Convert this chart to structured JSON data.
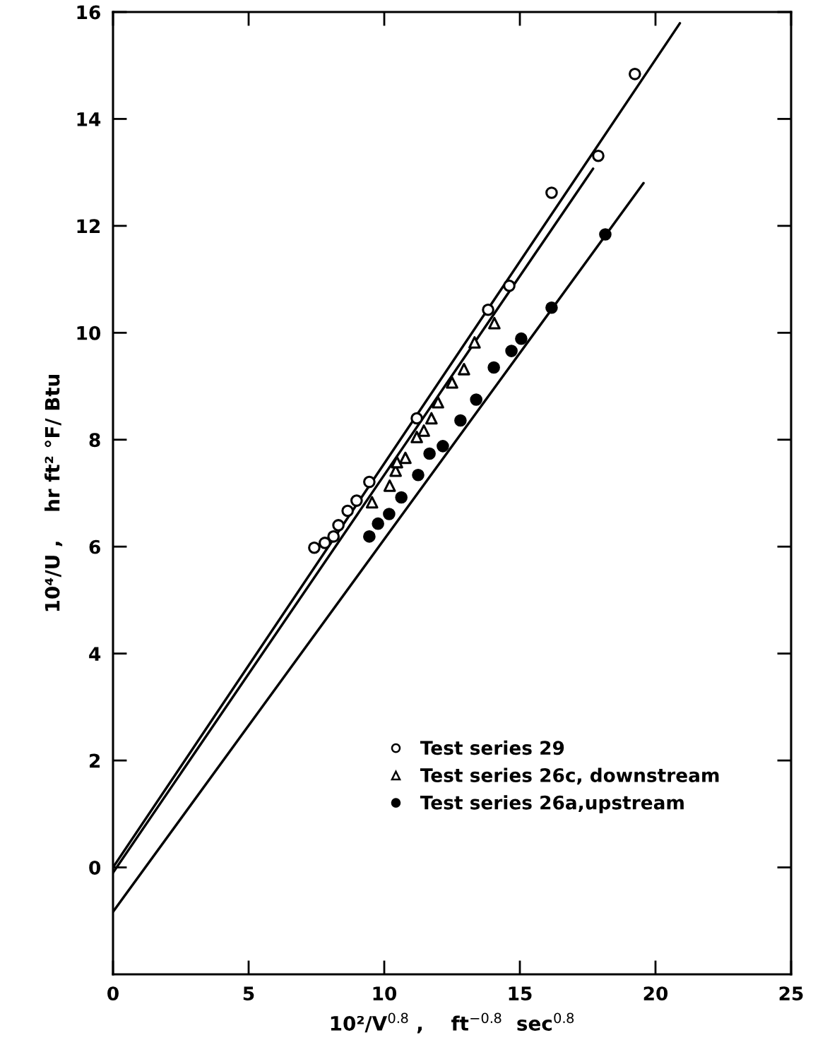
{
  "chart_data": {
    "type": "scatter",
    "xlabel": "10²/V$^{0.8}$ ,    ft$^{−0.8}$  sec$^{0.8}$",
    "ylabel": "10⁴/U ,    hr ft² °F/ Btu",
    "xlim": [
      0,
      25
    ],
    "ylim": [
      -2,
      16
    ],
    "xticks": [
      0,
      5,
      10,
      15,
      20,
      25
    ],
    "yticks": [
      0,
      2,
      4,
      6,
      8,
      10,
      12,
      14,
      16
    ],
    "grid": false,
    "legend": "lower right",
    "series": [
      {
        "name": "Test series 29",
        "marker": "circle",
        "color": "#ffffff",
        "x": [
          7.42,
          7.81,
          8.13,
          8.31,
          8.65,
          8.98,
          9.45,
          11.2,
          13.83,
          14.61,
          16.17,
          17.89,
          19.24
        ],
        "values": [
          5.98,
          6.07,
          6.19,
          6.4,
          6.67,
          6.86,
          7.21,
          8.4,
          10.43,
          10.88,
          12.62,
          13.31,
          14.84
        ]
      },
      {
        "name": "Test series 26c, downstream",
        "marker": "triangle",
        "color": "#ffffff",
        "x": [
          9.55,
          10.2,
          10.42,
          10.47,
          10.78,
          11.2,
          11.46,
          11.74,
          11.98,
          12.5,
          12.94,
          13.33,
          14.06
        ],
        "values": [
          6.83,
          7.14,
          7.42,
          7.58,
          7.66,
          8.05,
          8.17,
          8.4,
          8.7,
          9.07,
          9.32,
          9.82,
          10.18
        ]
      },
      {
        "name": "Test series 26a,upstream",
        "marker": "circle",
        "color": "#000000",
        "x": [
          9.45,
          9.77,
          10.18,
          10.63,
          11.25,
          11.67,
          12.16,
          12.81,
          13.39,
          14.04,
          14.69,
          15.05,
          16.17,
          18.15
        ],
        "values": [
          6.19,
          6.43,
          6.61,
          6.92,
          7.34,
          7.74,
          7.88,
          8.36,
          8.75,
          9.35,
          9.66,
          9.89,
          10.47,
          11.84
        ]
      },
      {
        "type": "line",
        "line_style": "solid",
        "color": "#000000",
        "x": [
          0,
          20.9
        ],
        "values": [
          0,
          15.79
        ]
      },
      {
        "type": "line",
        "line_style": "solid",
        "color": "#000000",
        "x": [
          0,
          17.7
        ],
        "values": [
          -0.1,
          13.07
        ]
      },
      {
        "type": "line",
        "line_style": "solid",
        "color": "#000000",
        "x": [
          0,
          19.56
        ],
        "values": [
          -0.83,
          12.8
        ]
      }
    ]
  }
}
